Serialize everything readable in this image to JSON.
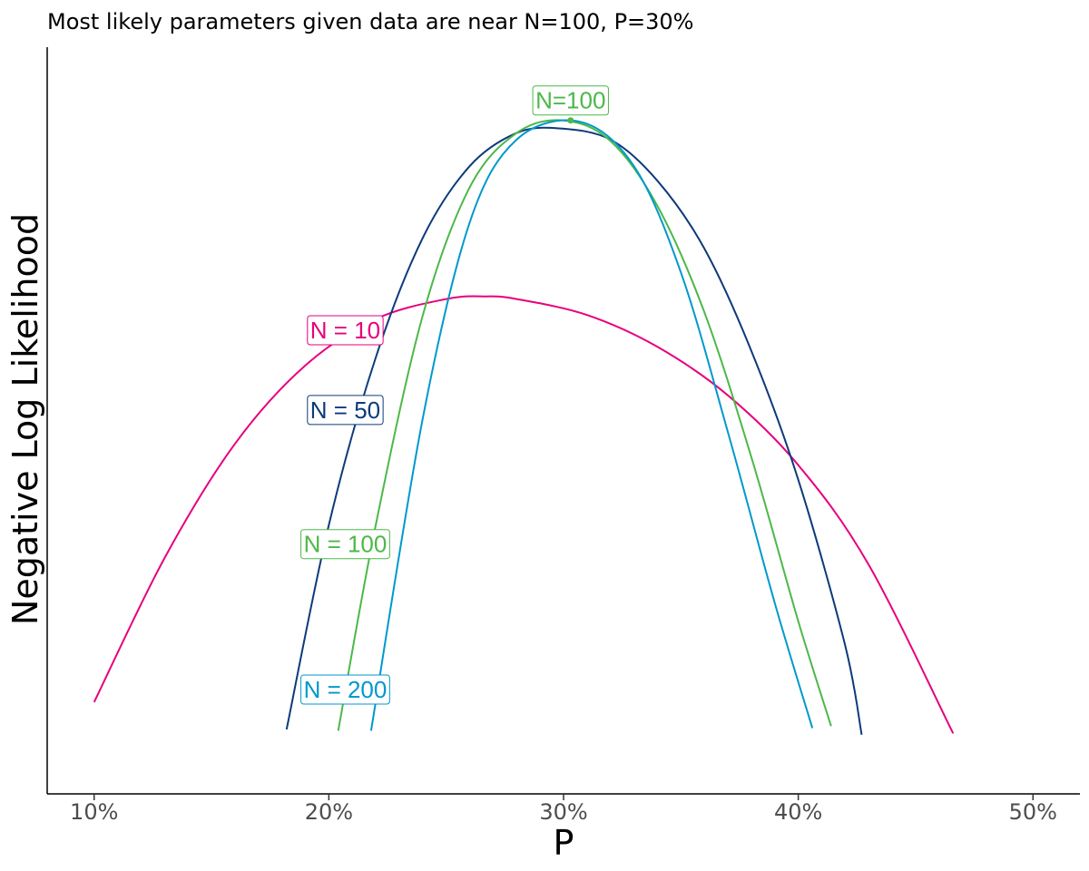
{
  "chart_data": {
    "type": "line",
    "title": "Most likely parameters given data are near N=100, P=30%",
    "xlabel": "P",
    "ylabel": "Negative Log Likelihood",
    "x_ticks": [
      "10%",
      "20%",
      "30%",
      "40%",
      "50%"
    ],
    "x_tick_values": [
      10,
      20,
      30,
      40,
      50
    ],
    "xlim": [
      8,
      52
    ],
    "ylim": [
      0,
      1
    ],
    "y_ticks_shown": false,
    "grid": false,
    "legend": "none",
    "series": [
      {
        "name": "N = 10",
        "color": "#e6007e",
        "points": [
          [
            10,
            0.093
          ],
          [
            13,
            0.31
          ],
          [
            16,
            0.482
          ],
          [
            19,
            0.6
          ],
          [
            22,
            0.67
          ],
          [
            25,
            0.7
          ],
          [
            26.7,
            0.704
          ],
          [
            28,
            0.7
          ],
          [
            31,
            0.676
          ],
          [
            34,
            0.628
          ],
          [
            37,
            0.555
          ],
          [
            40,
            0.45
          ],
          [
            43,
            0.3
          ],
          [
            46.6,
            0.046
          ]
        ]
      },
      {
        "name": "N = 50",
        "color": "#0d3a7a",
        "points": [
          [
            18.2,
            0.052
          ],
          [
            20,
            0.36
          ],
          [
            22,
            0.612
          ],
          [
            24,
            0.792
          ],
          [
            26,
            0.9
          ],
          [
            28,
            0.95
          ],
          [
            29.8,
            0.957
          ],
          [
            32,
            0.94
          ],
          [
            34,
            0.878
          ],
          [
            36,
            0.776
          ],
          [
            38,
            0.622
          ],
          [
            40,
            0.428
          ],
          [
            42,
            0.178
          ],
          [
            42.7,
            0.044
          ]
        ]
      },
      {
        "name": "N = 100",
        "color": "#4cb848",
        "points": [
          [
            20.4,
            0.05
          ],
          [
            22,
            0.36
          ],
          [
            24,
            0.675
          ],
          [
            26,
            0.868
          ],
          [
            28,
            0.95
          ],
          [
            30,
            0.969
          ],
          [
            32,
            0.938
          ],
          [
            34,
            0.84
          ],
          [
            36,
            0.68
          ],
          [
            38,
            0.462
          ],
          [
            40,
            0.215
          ],
          [
            41.4,
            0.057
          ]
        ]
      },
      {
        "name": "N = 200",
        "color": "#0099cc",
        "points": [
          [
            21.8,
            0.05
          ],
          [
            24,
            0.52
          ],
          [
            26,
            0.815
          ],
          [
            28,
            0.94
          ],
          [
            30.7,
            0.967
          ],
          [
            33,
            0.9
          ],
          [
            35,
            0.74
          ],
          [
            37,
            0.5
          ],
          [
            39,
            0.242
          ],
          [
            40.6,
            0.054
          ]
        ]
      }
    ],
    "annotations": [
      {
        "text": "N = 10",
        "color": "#e6007e",
        "x": 20.7,
        "y": 0.653
      },
      {
        "text": "N = 50",
        "color": "#0d3a7a",
        "x": 20.7,
        "y": 0.533
      },
      {
        "text": "N = 100",
        "color": "#4cb848",
        "x": 20.7,
        "y": 0.331
      },
      {
        "text": "N = 200",
        "color": "#0099cc",
        "x": 20.7,
        "y": 0.112
      },
      {
        "text": "N=100",
        "color": "#4cb848",
        "x": 30.3,
        "y": 0.999
      }
    ],
    "highlight_point": {
      "x": 30.3,
      "y": 0.969,
      "color": "#4cb848"
    }
  }
}
